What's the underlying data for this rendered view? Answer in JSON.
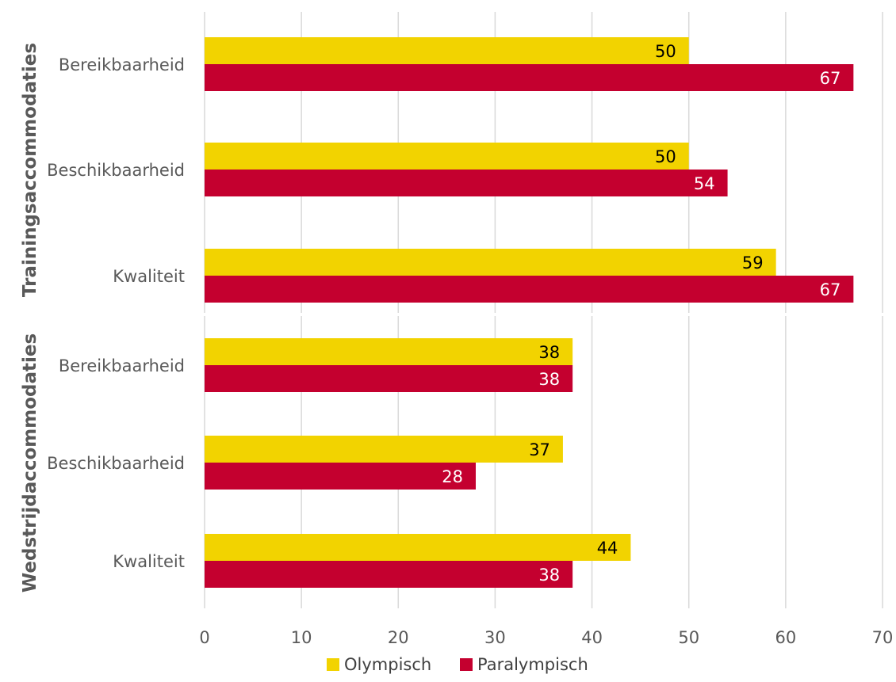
{
  "chart_data": {
    "type": "bar",
    "orientation": "horizontal",
    "xlim": [
      0,
      70
    ],
    "xticks": [
      0,
      10,
      20,
      30,
      40,
      50,
      60,
      70
    ],
    "grid": true,
    "legend_position": "bottom",
    "groups": [
      {
        "label": "Trainingsaccommodaties",
        "categories": [
          "Bereikbaarheid",
          "Beschikbaarheid",
          "Kwaliteit"
        ]
      },
      {
        "label": "Wedstrijdaccommodaties",
        "categories": [
          "Bereikbaarheid",
          "Beschikbaarheid",
          "Kwaliteit"
        ]
      }
    ],
    "series": [
      {
        "name": "Olympisch",
        "color": "#f2d300",
        "label_color": "#000000",
        "values": [
          50,
          50,
          59,
          38,
          37,
          44
        ],
        "labels": [
          "50",
          "50",
          "59",
          "38",
          "37",
          "44"
        ]
      },
      {
        "name": "Paralympisch",
        "color": "#c4002f",
        "label_color": "#ffffff",
        "values": [
          67,
          54,
          67,
          38,
          28,
          38
        ],
        "labels": [
          "67",
          "54",
          "67",
          "38",
          "28",
          "38"
        ]
      }
    ]
  }
}
